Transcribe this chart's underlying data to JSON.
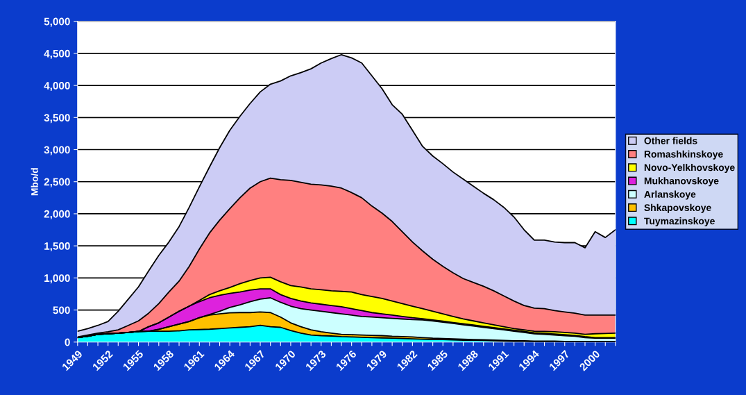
{
  "chart_data": {
    "type": "area",
    "stacked": true,
    "ylabel": "Mbo/d",
    "x": [
      1949,
      1950,
      1951,
      1952,
      1953,
      1954,
      1955,
      1956,
      1957,
      1958,
      1959,
      1960,
      1961,
      1962,
      1963,
      1964,
      1965,
      1966,
      1967,
      1968,
      1969,
      1970,
      1971,
      1972,
      1973,
      1974,
      1975,
      1976,
      1977,
      1978,
      1979,
      1980,
      1981,
      1982,
      1983,
      1984,
      1985,
      1986,
      1987,
      1988,
      1989,
      1990,
      1991,
      1992,
      1993,
      1994,
      1995,
      1996,
      1997,
      1998,
      1999,
      2000,
      2001,
      2002
    ],
    "xlim": [
      1949,
      2002
    ],
    "xticks": [
      1949,
      {
        "value": 1950,
        "label": null
      },
      {
        "value": 1951,
        "label": null
      },
      1952,
      {
        "value": 1953,
        "label": null
      },
      {
        "value": 1954,
        "label": null
      },
      1955,
      {
        "value": 1956,
        "label": null
      },
      {
        "value": 1957,
        "label": null
      },
      1958,
      {
        "value": 1959,
        "label": null
      },
      {
        "value": 1960,
        "label": null
      },
      1961,
      {
        "value": 1962,
        "label": null
      },
      {
        "value": 1963,
        "label": null
      },
      1964,
      {
        "value": 1965,
        "label": null
      },
      {
        "value": 1966,
        "label": null
      },
      1967,
      {
        "value": 1968,
        "label": null
      },
      {
        "value": 1969,
        "label": null
      },
      1970,
      {
        "value": 1971,
        "label": null
      },
      {
        "value": 1972,
        "label": null
      },
      1973,
      {
        "value": 1974,
        "label": null
      },
      {
        "value": 1975,
        "label": null
      },
      1976,
      {
        "value": 1977,
        "label": null
      },
      {
        "value": 1978,
        "label": null
      },
      1979,
      {
        "value": 1980,
        "label": null
      },
      {
        "value": 1981,
        "label": null
      },
      1982,
      {
        "value": 1983,
        "label": null
      },
      {
        "value": 1984,
        "label": null
      },
      1985,
      {
        "value": 1986,
        "label": null
      },
      {
        "value": 1987,
        "label": null
      },
      1988,
      {
        "value": 1989,
        "label": null
      },
      {
        "value": 1990,
        "label": null
      },
      1991,
      {
        "value": 1992,
        "label": null
      },
      {
        "value": 1993,
        "label": null
      },
      1994,
      {
        "value": 1995,
        "label": null
      },
      {
        "value": 1996,
        "label": null
      },
      1997,
      {
        "value": 1998,
        "label": null
      },
      {
        "value": 1999,
        "label": null
      },
      2000,
      {
        "value": 2001,
        "label": null
      },
      {
        "value": 2002,
        "label": null
      }
    ],
    "ylim": [
      0,
      5000
    ],
    "yticks": [
      {
        "value": 0,
        "label": "0"
      },
      {
        "value": 500,
        "label": "500"
      },
      {
        "value": 1000,
        "label": "1,000"
      },
      {
        "value": 1500,
        "label": "1,500"
      },
      {
        "value": 2000,
        "label": "2,000"
      },
      {
        "value": 2500,
        "label": "2,500"
      },
      {
        "value": 3000,
        "label": "3,000"
      },
      {
        "value": 3500,
        "label": "3,500"
      },
      {
        "value": 4000,
        "label": "4,000"
      },
      {
        "value": 4500,
        "label": "4,500"
      },
      {
        "value": 5000,
        "label": "5,000"
      }
    ],
    "grid": "y",
    "legend": "right",
    "series": [
      {
        "name": "Tuymazinskoye",
        "color": "#00ffff",
        "values": [
          70,
          90,
          120,
          130,
          140,
          150,
          165,
          170,
          170,
          170,
          175,
          190,
          195,
          200,
          210,
          220,
          230,
          240,
          260,
          240,
          230,
          180,
          140,
          110,
          100,
          95,
          85,
          80,
          75,
          70,
          65,
          60,
          55,
          50,
          45,
          40,
          40,
          35,
          30,
          30,
          25,
          20,
          15,
          10,
          10,
          5,
          5,
          5,
          5,
          5,
          5,
          0,
          0,
          0
        ]
      },
      {
        "name": "Shkapovskoye",
        "color": "#ffc000",
        "values": [
          0,
          0,
          0,
          0,
          0,
          0,
          0,
          0,
          30,
          70,
          105,
          130,
          185,
          220,
          230,
          235,
          230,
          220,
          210,
          220,
          160,
          120,
          100,
          80,
          60,
          45,
          35,
          35,
          35,
          35,
          35,
          30,
          30,
          30,
          25,
          20,
          15,
          15,
          15,
          10,
          10,
          10,
          10,
          10,
          10,
          10,
          10,
          10,
          5,
          5,
          5,
          10,
          10,
          10
        ]
      },
      {
        "name": "Arlanskoye",
        "color": "#ccffff",
        "values": [
          0,
          0,
          0,
          0,
          0,
          0,
          0,
          0,
          0,
          0,
          0,
          0,
          0,
          10,
          40,
          85,
          120,
          170,
          200,
          230,
          230,
          260,
          280,
          310,
          320,
          320,
          320,
          305,
          290,
          285,
          280,
          280,
          275,
          270,
          275,
          270,
          255,
          240,
          225,
          210,
          195,
          180,
          165,
          150,
          130,
          115,
          105,
          95,
          90,
          80,
          60,
          50,
          50,
          50
        ]
      },
      {
        "name": "Mukhanovskoye",
        "color": "#dd22dd",
        "values": [
          0,
          0,
          0,
          0,
          0,
          0,
          0,
          70,
          100,
          150,
          200,
          240,
          250,
          260,
          250,
          220,
          200,
          180,
          160,
          140,
          120,
          120,
          120,
          110,
          110,
          110,
          110,
          100,
          90,
          70,
          60,
          50,
          40,
          30,
          20,
          15,
          15,
          15,
          15,
          15,
          15,
          15,
          15,
          15,
          15,
          15,
          15,
          15,
          15,
          15,
          15,
          10,
          10,
          10
        ]
      },
      {
        "name": "Novo-Yelkhovskoye",
        "color": "#ffff00",
        "values": [
          0,
          0,
          0,
          0,
          0,
          0,
          0,
          0,
          0,
          0,
          0,
          0,
          20,
          50,
          70,
          90,
          130,
          150,
          170,
          180,
          200,
          200,
          220,
          220,
          225,
          230,
          240,
          260,
          250,
          250,
          240,
          220,
          200,
          180,
          155,
          135,
          115,
          95,
          75,
          65,
          55,
          45,
          35,
          25,
          25,
          25,
          30,
          35,
          35,
          35,
          35,
          60,
          65,
          70
        ]
      },
      {
        "name": "Romashkinskoye",
        "color": "#ff8080",
        "values": [
          10,
          20,
          20,
          30,
          50,
          110,
          165,
          210,
          300,
          390,
          470,
          620,
          800,
          960,
          1100,
          1230,
          1340,
          1440,
          1500,
          1545,
          1590,
          1640,
          1630,
          1630,
          1635,
          1630,
          1610,
          1550,
          1510,
          1410,
          1330,
          1240,
          1120,
          1000,
          900,
          810,
          740,
          680,
          630,
          600,
          570,
          530,
          480,
          430,
          380,
          360,
          355,
          330,
          320,
          310,
          300,
          290,
          285,
          280
        ]
      },
      {
        "name": "Other fields",
        "color": "#ccccf5",
        "values": [
          90,
          100,
          120,
          160,
          290,
          410,
          530,
          660,
          750,
          780,
          850,
          920,
          970,
          1030,
          1130,
          1220,
          1270,
          1320,
          1400,
          1465,
          1540,
          1630,
          1710,
          1800,
          1900,
          1990,
          2080,
          2100,
          2100,
          2030,
          1940,
          1820,
          1830,
          1740,
          1630,
          1610,
          1600,
          1570,
          1550,
          1500,
          1450,
          1420,
          1380,
          1310,
          1180,
          1060,
          1070,
          1070,
          1080,
          1100,
          1050,
          1300,
          1210,
          1330
        ]
      }
    ]
  }
}
